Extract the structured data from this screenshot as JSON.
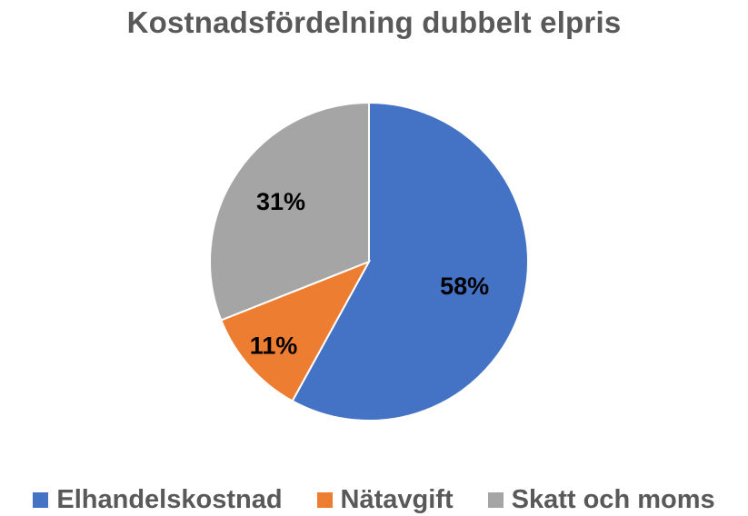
{
  "chart_data": {
    "type": "pie",
    "title": "Kostnadsfördelning dubbelt elpris",
    "categories": [
      "Elhandelskostnad",
      "Nätavgift",
      "Skatt och moms"
    ],
    "values": [
      58,
      11,
      31
    ],
    "data_labels": [
      "58%",
      "11%",
      "31%"
    ],
    "colors": [
      "#4472C4",
      "#ED7D31",
      "#A5A5A5"
    ],
    "legend_position": "bottom",
    "start_angle_deg": 0,
    "direction": "clockwise"
  }
}
